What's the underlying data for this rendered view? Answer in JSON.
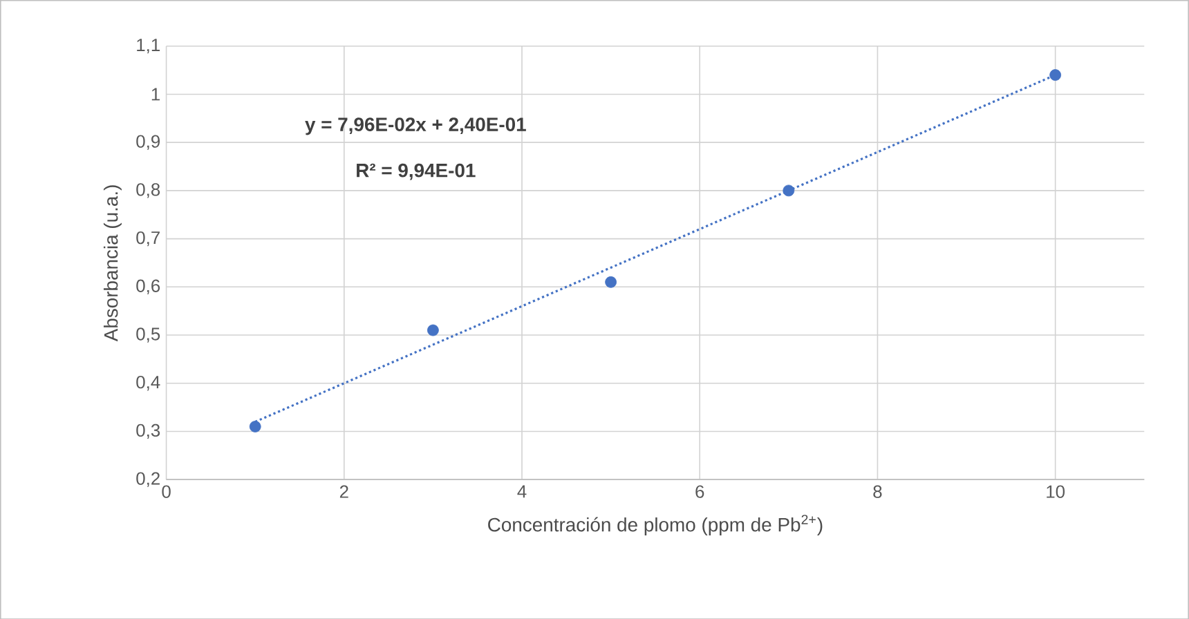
{
  "chart_data": {
    "type": "scatter",
    "xlabel": "Concentración de plomo (ppm de Pb$^{2+}$)",
    "ylabel": "Absorbancia (u.a.)",
    "annotations": [
      "y = 7,96E-02x + 2,40E-01",
      "R² = 9,94E-01"
    ],
    "x": [
      1,
      3,
      5,
      7,
      10
    ],
    "series": [
      {
        "color": "#4472c4",
        "values": [
          0.31,
          0.51,
          0.61,
          0.8,
          1.04
        ],
        "marker": "circle"
      },
      {
        "type": "line",
        "color": "#4472c4",
        "x": [
          1,
          10
        ],
        "values": [
          0.32,
          1.04
        ],
        "line_style": "dotted",
        "marker": "none"
      }
    ],
    "xlim": [
      0,
      11
    ],
    "xticks": [
      0,
      2,
      4,
      6,
      8,
      10
    ],
    "ylim": [
      0.2,
      1.1
    ],
    "yticks": [
      {
        "value": 0.2,
        "label": "0,2"
      },
      {
        "value": 0.3,
        "label": "0,3"
      },
      {
        "value": 0.4,
        "label": "0,4"
      },
      {
        "value": 0.5,
        "label": "0,5"
      },
      {
        "value": 0.6,
        "label": "0,6"
      },
      {
        "value": 0.7,
        "label": "0,7"
      },
      {
        "value": 0.8,
        "label": "0,8"
      },
      {
        "value": 0.9,
        "label": "0,9"
      },
      {
        "value": 1,
        "label": "1"
      },
      {
        "value": 1.1,
        "label": "1,1"
      }
    ],
    "grid": true
  }
}
